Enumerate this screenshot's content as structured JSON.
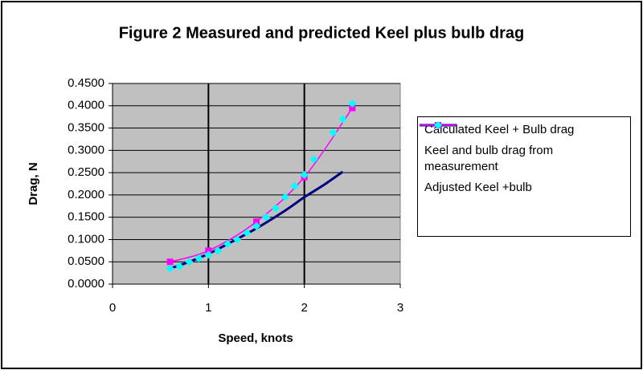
{
  "chart_data": {
    "type": "line",
    "title": "Figure 2  Measured and predicted Keel plus bulb drag",
    "x_label": "Speed, knots",
    "y_label": "Drag, N",
    "xlim": [
      0,
      3
    ],
    "xticks": [
      0,
      1,
      2,
      3
    ],
    "ylim": [
      0,
      0.45
    ],
    "yticks": [
      {
        "value": 0,
        "label": "0.0000"
      },
      {
        "value": 0.05,
        "label": "0.0500"
      },
      {
        "value": 0.1,
        "label": "0.1000"
      },
      {
        "value": 0.15,
        "label": "0.1500"
      },
      {
        "value": 0.2,
        "label": "0.2000"
      },
      {
        "value": 0.25,
        "label": "0.2500"
      },
      {
        "value": 0.3,
        "label": "0.3000"
      },
      {
        "value": 0.35,
        "label": "0.3500"
      },
      {
        "value": 0.4,
        "label": "0.4000"
      },
      {
        "value": 0.45,
        "label": "0.4500"
      }
    ],
    "grid": true,
    "legend": "right",
    "series": [
      {
        "name": "Calculated Keel + Bulb drag",
        "color": "#000080",
        "line": true,
        "marker": "none",
        "x": [
          0.6,
          0.8,
          1.0,
          1.2,
          1.5,
          1.8,
          2.0,
          2.2,
          2.4
        ],
        "values": [
          0.035,
          0.05,
          0.068,
          0.09,
          0.125,
          0.165,
          0.195,
          0.222,
          0.252
        ]
      },
      {
        "name": "Keel and bulb drag from measurement",
        "color": "#ff00ff",
        "line": true,
        "marker": "square",
        "x": [
          0.6,
          1.0,
          1.5,
          2.0,
          2.5
        ],
        "values": [
          0.05,
          0.075,
          0.14,
          0.24,
          0.395
        ]
      },
      {
        "name": "Adjusted Keel +bulb",
        "color": "#00ffff",
        "line": false,
        "marker": "diamond",
        "x": [
          0.6,
          0.7,
          0.8,
          0.9,
          1.0,
          1.1,
          1.2,
          1.3,
          1.4,
          1.5,
          1.6,
          1.7,
          1.8,
          1.9,
          2.0,
          2.1,
          2.3,
          2.4,
          2.5
        ],
        "values": [
          0.035,
          0.04,
          0.05,
          0.058,
          0.066,
          0.075,
          0.09,
          0.1,
          0.115,
          0.13,
          0.15,
          0.17,
          0.195,
          0.22,
          0.245,
          0.28,
          0.34,
          0.37,
          0.405
        ]
      }
    ]
  }
}
